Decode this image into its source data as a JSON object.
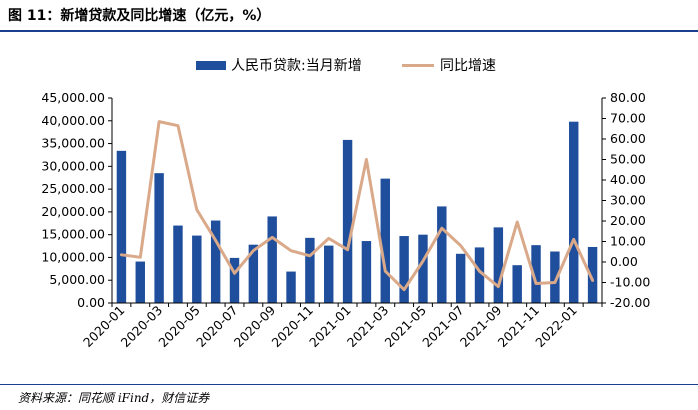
{
  "figure_title": "图 11：新增贷款及同比增速（亿元，%）",
  "source": "资料来源：同花顺 iFind，财信证券",
  "chart_data": {
    "type": "bar+line",
    "categories": [
      "2020-01",
      "2020-02",
      "2020-03",
      "2020-04",
      "2020-05",
      "2020-06",
      "2020-07",
      "2020-08",
      "2020-09",
      "2020-10",
      "2020-11",
      "2020-12",
      "2021-01",
      "2021-02",
      "2021-03",
      "2021-04",
      "2021-05",
      "2021-06",
      "2021-07",
      "2021-08",
      "2021-09",
      "2021-10",
      "2021-11",
      "2021-12",
      "2022-01",
      "2022-02"
    ],
    "x_tick_labels": [
      "2020-01",
      "2020-03",
      "2020-05",
      "2020-07",
      "2020-09",
      "2020-11",
      "2021-01",
      "2021-03",
      "2021-05",
      "2021-07",
      "2021-09",
      "2021-11",
      "2022-01"
    ],
    "series": [
      {
        "name": "人民币贷款:当月新增",
        "type": "bar",
        "axis": "left",
        "color": "#1f4e9c",
        "values": [
          33400,
          9100,
          28500,
          17000,
          14800,
          18100,
          9900,
          12800,
          19000,
          6900,
          14300,
          12600,
          35800,
          13600,
          27300,
          14700,
          15000,
          21200,
          10800,
          12200,
          16600,
          8300,
          12700,
          11300,
          39800,
          12300
        ]
      },
      {
        "name": "同比增速",
        "type": "line",
        "axis": "right",
        "color": "#d9a98a",
        "values": [
          3.5,
          2.3,
          68.5,
          66.5,
          25.5,
          10.5,
          -5.5,
          5.5,
          12.0,
          5.5,
          3.0,
          11.5,
          6.0,
          50.0,
          -4.5,
          -13.5,
          0.5,
          16.5,
          8.0,
          -4.5,
          -12.0,
          19.5,
          -10.5,
          -10.0,
          11.0,
          -9.0
        ]
      }
    ],
    "y_left": {
      "min": 0,
      "max": 45000,
      "step": 5000,
      "tick_labels": [
        "0.00",
        "5,000.00",
        "10,000.00",
        "15,000.00",
        "20,000.00",
        "25,000.00",
        "30,000.00",
        "35,000.00",
        "40,000.00",
        "45,000.00"
      ]
    },
    "y_right": {
      "min": -20,
      "max": 80,
      "step": 10,
      "tick_labels": [
        "-20.00",
        "-10.00",
        "0.00",
        "10.00",
        "20.00",
        "30.00",
        "40.00",
        "50.00",
        "60.00",
        "70.00",
        "80.00"
      ]
    },
    "legend_position": "top-center",
    "grid": false
  }
}
